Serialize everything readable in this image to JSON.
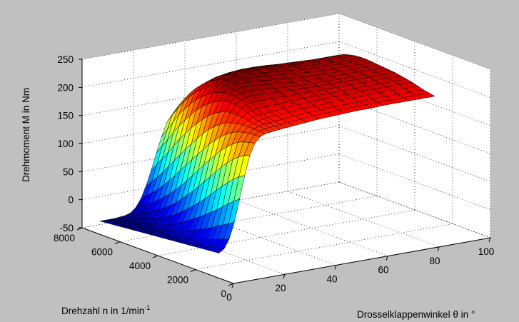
{
  "chart_data": {
    "type": "surface",
    "title": "",
    "colormap": "jet",
    "grid": true,
    "box": true,
    "background_color": "#c0c0c0",
    "axes_face_color": "#ffffff",
    "xlabel": "Drosselklappenwinkel θ in °",
    "ylabel": "Drehzahl n in 1/min",
    "ylabel_superscript": "-1",
    "zlabel": "Drehmoment M in Nm",
    "xlim": [
      0,
      100
    ],
    "ylim": [
      0,
      8000
    ],
    "zlim": [
      -50,
      250
    ],
    "x_ticks": [
      0,
      20,
      40,
      60,
      80,
      100
    ],
    "y_ticks": [
      0,
      2000,
      4000,
      6000,
      8000
    ],
    "z_ticks": [
      -50,
      0,
      50,
      100,
      150,
      200,
      250
    ],
    "x_tick_labels": [
      "0",
      "20",
      "40",
      "60",
      "80",
      "100"
    ],
    "y_tick_labels": [
      "0",
      "2000",
      "4000",
      "6000",
      "8000"
    ],
    "z_tick_labels": [
      "-50",
      "0",
      "50",
      "100",
      "150",
      "200",
      "250"
    ],
    "theta": [
      1,
      3,
      5,
      7,
      9,
      11,
      13,
      15,
      17,
      19,
      21,
      23,
      25,
      27,
      30,
      35,
      40,
      45,
      50,
      55,
      60,
      65,
      70,
      75,
      80,
      85
    ],
    "n": [
      900,
      1200,
      1500,
      1800,
      2100,
      2400,
      2700,
      3000,
      3300,
      3600,
      3900,
      4200,
      4500,
      4800,
      5100,
      5400,
      5700,
      6000,
      6300,
      6600,
      6900,
      7200
    ],
    "M": [
      [
        -8,
        -2,
        14,
        42,
        82,
        122,
        156,
        176,
        186,
        190,
        191,
        192,
        193,
        194,
        195,
        197,
        199,
        200,
        201,
        202,
        202,
        203,
        203,
        203,
        203,
        203
      ],
      [
        -9,
        -4,
        10,
        36,
        74,
        116,
        152,
        174,
        186,
        191,
        193,
        194,
        195,
        196,
        197,
        199,
        201,
        202,
        203,
        204,
        204,
        205,
        205,
        205,
        205,
        205
      ],
      [
        -10,
        -6,
        6,
        30,
        66,
        108,
        146,
        171,
        185,
        191,
        194,
        196,
        197,
        198,
        199,
        201,
        203,
        204,
        205,
        206,
        206,
        207,
        207,
        207,
        207,
        207
      ],
      [
        -11,
        -8,
        2,
        24,
        57,
        98,
        138,
        167,
        183,
        191,
        195,
        198,
        200,
        201,
        202,
        204,
        206,
        207,
        208,
        209,
        209,
        210,
        210,
        210,
        210,
        210
      ],
      [
        -12,
        -10,
        -2,
        18,
        48,
        88,
        128,
        160,
        180,
        191,
        197,
        201,
        203,
        204,
        205,
        207,
        209,
        210,
        211,
        212,
        212,
        213,
        213,
        213,
        213,
        213
      ],
      [
        -13,
        -12,
        -6,
        12,
        40,
        77,
        117,
        151,
        175,
        190,
        199,
        205,
        208,
        209,
        210,
        211,
        212,
        213,
        214,
        214,
        214,
        215,
        215,
        215,
        215,
        215
      ],
      [
        -14,
        -13,
        -9,
        7,
        32,
        66,
        105,
        141,
        168,
        187,
        200,
        209,
        214,
        216,
        217,
        217,
        217,
        217,
        217,
        217,
        217,
        217,
        217,
        217,
        217,
        217
      ],
      [
        -15,
        -14,
        -12,
        2,
        24,
        55,
        92,
        129,
        160,
        183,
        200,
        212,
        219,
        222,
        223,
        222,
        221,
        220,
        220,
        219,
        219,
        219,
        219,
        219,
        219,
        219
      ],
      [
        -16,
        -15,
        -14,
        -3,
        17,
        45,
        80,
        117,
        150,
        177,
        198,
        213,
        222,
        226,
        227,
        226,
        224,
        222,
        221,
        220,
        220,
        220,
        220,
        220,
        220,
        220
      ],
      [
        -17,
        -16,
        -16,
        -7,
        10,
        35,
        68,
        104,
        139,
        169,
        193,
        211,
        222,
        228,
        230,
        229,
        227,
        225,
        223,
        222,
        221,
        221,
        221,
        221,
        221,
        221
      ],
      [
        -18,
        -18,
        -18,
        -11,
        4,
        26,
        56,
        91,
        127,
        160,
        187,
        207,
        221,
        229,
        232,
        232,
        230,
        228,
        226,
        224,
        223,
        222,
        222,
        222,
        222,
        222
      ],
      [
        -19,
        -19,
        -19,
        -15,
        -2,
        17,
        45,
        78,
        114,
        149,
        179,
        202,
        218,
        228,
        233,
        234,
        233,
        231,
        229,
        227,
        225,
        224,
        223,
        223,
        223,
        223
      ],
      [
        -20,
        -20,
        -20,
        -18,
        -8,
        9,
        34,
        65,
        101,
        137,
        169,
        195,
        213,
        225,
        232,
        235,
        235,
        233,
        231,
        229,
        227,
        226,
        225,
        224,
        224,
        224
      ],
      [
        -21,
        -21,
        -21,
        -20,
        -13,
        2,
        24,
        53,
        88,
        124,
        158,
        186,
        206,
        220,
        229,
        233,
        235,
        234,
        232,
        230,
        228,
        226,
        225,
        224,
        224,
        224
      ],
      [
        -22,
        -22,
        -22,
        -22,
        -17,
        -4,
        15,
        42,
        75,
        111,
        146,
        176,
        198,
        214,
        224,
        230,
        232,
        232,
        231,
        229,
        227,
        225,
        224,
        223,
        223,
        223
      ],
      [
        -23,
        -23,
        -23,
        -23,
        -20,
        -10,
        7,
        31,
        62,
        97,
        133,
        164,
        189,
        206,
        218,
        225,
        228,
        229,
        228,
        227,
        225,
        223,
        222,
        221,
        221,
        221
      ],
      [
        -24,
        -24,
        -24,
        -24,
        -22,
        -15,
        0,
        21,
        49,
        83,
        119,
        151,
        178,
        197,
        210,
        218,
        222,
        224,
        224,
        223,
        221,
        220,
        219,
        218,
        218,
        218
      ],
      [
        -25,
        -25,
        -25,
        -25,
        -24,
        -19,
        -6,
        12,
        37,
        69,
        104,
        137,
        165,
        186,
        200,
        209,
        214,
        217,
        218,
        217,
        216,
        215,
        214,
        213,
        213,
        213
      ],
      [
        -26,
        -26,
        -26,
        -26,
        -25,
        -22,
        -12,
        4,
        26,
        55,
        89,
        122,
        151,
        173,
        189,
        199,
        205,
        208,
        210,
        210,
        209,
        208,
        207,
        206,
        206,
        206
      ],
      [
        -27,
        -27,
        -27,
        -27,
        -26,
        -24,
        -17,
        -3,
        16,
        42,
        74,
        106,
        135,
        158,
        175,
        186,
        193,
        197,
        200,
        200,
        200,
        199,
        198,
        197,
        197,
        197
      ],
      [
        -28,
        -28,
        -28,
        -28,
        -27,
        -26,
        -21,
        -10,
        7,
        30,
        59,
        90,
        118,
        142,
        160,
        172,
        180,
        185,
        188,
        189,
        189,
        188,
        187,
        186,
        186,
        186
      ],
      [
        -29,
        -29,
        -29,
        -29,
        -28,
        -27,
        -24,
        -16,
        -2,
        19,
        45,
        74,
        101,
        125,
        143,
        156,
        165,
        171,
        174,
        176,
        176,
        176,
        175,
        174,
        174,
        174
      ]
    ]
  }
}
